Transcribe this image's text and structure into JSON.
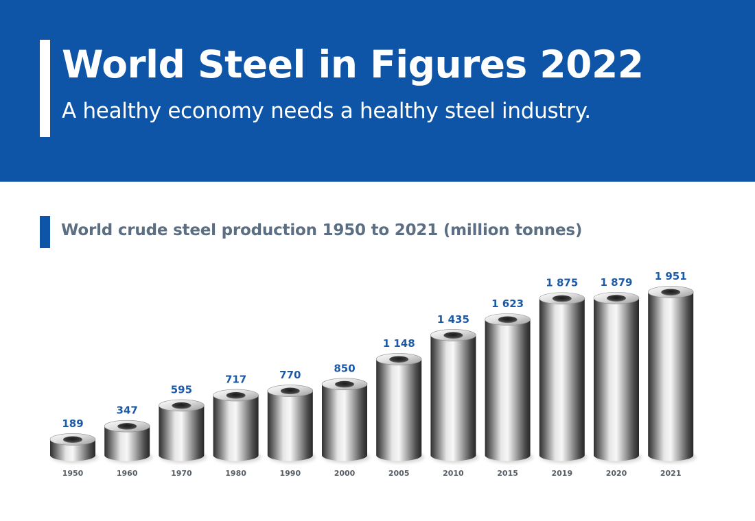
{
  "header": {
    "title": "World Steel in Figures 2022",
    "subtitle": "A healthy economy needs a healthy steel industry."
  },
  "colors": {
    "brand_blue": "#0e55a7",
    "value_label": "#1b5aa6",
    "section_title": "#5b6e82"
  },
  "chart_data": {
    "type": "bar",
    "title": "World crude steel production 1950 to 2021 (million tonnes)",
    "categories": [
      "1950",
      "1960",
      "1970",
      "1980",
      "1990",
      "2000",
      "2005",
      "2010",
      "2015",
      "2019",
      "2020",
      "2021"
    ],
    "values": [
      189,
      347,
      595,
      717,
      770,
      850,
      1148,
      1435,
      1623,
      1875,
      1879,
      1951
    ],
    "value_labels": [
      "189",
      "347",
      "595",
      "717",
      "770",
      "850",
      "1 148",
      "1 435",
      "1 623",
      "1 875",
      "1 879",
      "1 951"
    ],
    "bar_style": "steel cylinders",
    "xlabel": "",
    "ylabel": ""
  }
}
